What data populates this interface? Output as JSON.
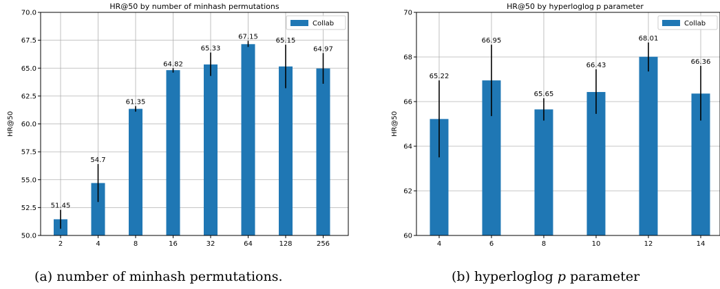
{
  "chart_data": [
    {
      "type": "bar",
      "title": "HR@50 by number of minhash permutations",
      "ylabel": "HR@50",
      "xlabel": "",
      "categories": [
        "2",
        "4",
        "8",
        "16",
        "32",
        "64",
        "128",
        "256"
      ],
      "series": [
        {
          "name": "Collab",
          "color": "#1f77b4",
          "values": [
            51.45,
            54.7,
            61.35,
            64.82,
            65.33,
            67.15,
            65.15,
            64.97
          ],
          "error_low": [
            50.6,
            53.0,
            61.1,
            64.6,
            64.3,
            66.9,
            63.2,
            63.6
          ],
          "error_high": [
            52.3,
            56.4,
            61.6,
            65.0,
            66.4,
            67.45,
            67.1,
            66.35
          ],
          "labels": [
            "51.45",
            "54.7",
            "61.35",
            "64.82",
            "65.33",
            "67.15",
            "65.15",
            "64.97"
          ]
        }
      ],
      "ylim": [
        50.0,
        70.0
      ],
      "yticks": [
        "50.0",
        "52.5",
        "55.0",
        "57.5",
        "60.0",
        "62.5",
        "65.0",
        "67.5",
        "70.0"
      ],
      "grid": true,
      "legend_position": "top-right"
    },
    {
      "type": "bar",
      "title": "HR@50 by hyperloglog p parameter",
      "ylabel": "HR@50",
      "xlabel": "",
      "categories": [
        "4",
        "6",
        "8",
        "10",
        "12",
        "14"
      ],
      "series": [
        {
          "name": "Collab",
          "color": "#1f77b4",
          "values": [
            65.22,
            66.95,
            65.65,
            66.43,
            68.01,
            66.36
          ],
          "error_low": [
            63.5,
            65.35,
            65.15,
            65.45,
            67.35,
            65.15
          ],
          "error_high": [
            66.95,
            68.55,
            66.15,
            67.45,
            68.65,
            67.6
          ],
          "labels": [
            "65.22",
            "66.95",
            "65.65",
            "66.43",
            "68.01",
            "66.36"
          ]
        }
      ],
      "ylim": [
        60,
        70
      ],
      "yticks": [
        "60",
        "62",
        "64",
        "66",
        "68",
        "70"
      ],
      "grid": true,
      "legend_position": "top-right"
    }
  ],
  "captions": {
    "left": "(a) number of minhash permutations.",
    "right_prefix": "(b) hyperloglog ",
    "right_italic": "p",
    "right_suffix": " parameter"
  }
}
